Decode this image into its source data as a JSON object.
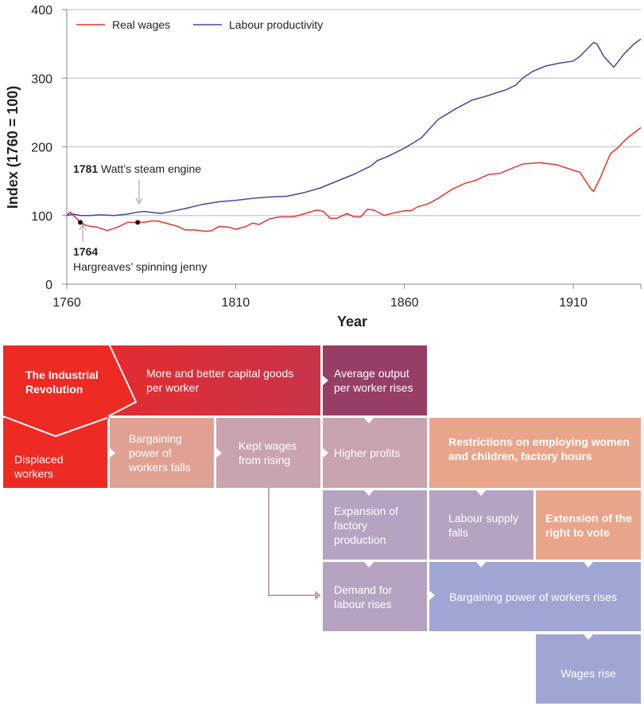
{
  "chart_data": {
    "type": "line",
    "xlabel": "Year",
    "ylabel": "Index (1760 = 100)",
    "xlim": [
      1760,
      1930
    ],
    "ylim": [
      0,
      400
    ],
    "xticks": [
      1760,
      1810,
      1860,
      1910
    ],
    "yticks": [
      0,
      100,
      200,
      300,
      400
    ],
    "grid": "horizontal",
    "legend_placement": "top-left",
    "series": [
      {
        "name": "Real wages",
        "color": "#e8332a",
        "x": [
          1760,
          1761,
          1763,
          1764,
          1766,
          1769,
          1772,
          1775,
          1778,
          1781,
          1783,
          1785,
          1787,
          1790,
          1793,
          1795,
          1798,
          1801,
          1803,
          1805,
          1808,
          1810,
          1813,
          1815,
          1817,
          1820,
          1823,
          1827,
          1830,
          1834,
          1836,
          1838,
          1840,
          1843,
          1845,
          1847,
          1849,
          1851,
          1854,
          1857,
          1860,
          1862,
          1864,
          1867,
          1870,
          1874,
          1878,
          1881,
          1885,
          1888,
          1891,
          1895,
          1900,
          1905,
          1910,
          1912,
          1915,
          1916,
          1918,
          1921,
          1923,
          1926,
          1930
        ],
        "y": [
          100,
          105,
          95,
          90,
          85,
          83,
          78,
          83,
          90,
          90,
          90,
          92,
          92,
          88,
          84,
          79,
          79,
          77,
          78,
          84,
          83,
          80,
          84,
          89,
          87,
          95,
          98,
          98,
          102,
          108,
          106,
          96,
          96,
          103,
          98,
          98,
          109,
          108,
          100,
          104,
          107,
          107,
          113,
          117,
          125,
          138,
          147,
          151,
          160,
          161,
          167,
          175,
          177,
          174,
          166,
          163,
          140,
          135,
          155,
          190,
          198,
          213,
          228
        ]
      },
      {
        "name": "Labour productivity",
        "color": "#3a4ba0",
        "x": [
          1760,
          1762,
          1764,
          1767,
          1770,
          1774,
          1778,
          1781,
          1783,
          1786,
          1788,
          1790,
          1795,
          1800,
          1805,
          1810,
          1815,
          1820,
          1825,
          1830,
          1835,
          1840,
          1845,
          1850,
          1852,
          1855,
          1860,
          1865,
          1870,
          1875,
          1880,
          1885,
          1888,
          1890,
          1893,
          1895,
          1898,
          1902,
          1906,
          1910,
          1912,
          1916,
          1917,
          1919,
          1922,
          1925,
          1928,
          1930
        ],
        "y": [
          100,
          102,
          100,
          100,
          101,
          100,
          102,
          105,
          106,
          104,
          103,
          105,
          110,
          116,
          120,
          122,
          125,
          127,
          128,
          133,
          140,
          150,
          160,
          172,
          180,
          186,
          198,
          213,
          240,
          255,
          268,
          275,
          280,
          283,
          290,
          300,
          310,
          318,
          322,
          325,
          332,
          352,
          350,
          332,
          316,
          335,
          350,
          357
        ]
      }
    ],
    "annotations": [
      {
        "year": "1781",
        "text": "Watt’s steam engine",
        "value": 106
      },
      {
        "year": "1764",
        "text": "Hargreaves’ spinning jenny",
        "value": 90
      }
    ],
    "markers": [
      {
        "x": 1764,
        "y": 90
      },
      {
        "x": 1781,
        "y": 90
      }
    ]
  },
  "diagram": {
    "industrial_revolution": "The Industrial Revolution",
    "capital_goods": "More and better capital goods per worker",
    "average_output": "Average output per worker rises",
    "displaced_workers": "Displaced workers",
    "bargaining_falls": "Bargaining power of workers falls",
    "kept_wages": "Kept wages from rising",
    "higher_profits": "Higher profits",
    "restrictions": "Restrictions on employing women and children, factory hours",
    "expansion": "Expansion of factory production",
    "labour_supply": "Labour supply falls",
    "right_to_vote": "Extension of the right to vote",
    "demand_labour": "Demand for labour rises",
    "bargaining_rises": "Bargaining power of workers rises",
    "wages_rise": "Wages rise",
    "colors": {
      "red": "#ee2a24",
      "crimson": "#cf3447",
      "plum": "#963e66",
      "salmon": "#e0a193",
      "mauve": "#c9a3ae",
      "lilac": "#b6a3c2",
      "orange": "#e9a58a",
      "periwinkle": "#a0a6d4"
    }
  }
}
